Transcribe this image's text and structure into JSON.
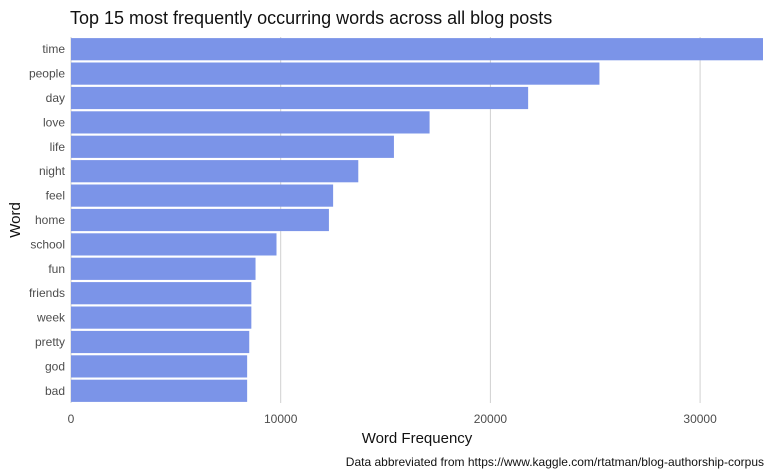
{
  "chart_data": {
    "type": "bar",
    "orientation": "horizontal",
    "title": "Top 15 most frequently occurring words across all blog posts",
    "xlabel": "Word Frequency",
    "ylabel": "Word",
    "caption": "Data abbreviated from https://www.kaggle.com/rtatman/blog-authorship-corpus",
    "categories": [
      "time",
      "people",
      "day",
      "love",
      "life",
      "night",
      "feel",
      "home",
      "school",
      "fun",
      "friends",
      "week",
      "pretty",
      "god",
      "bad"
    ],
    "values": [
      33000,
      25200,
      21800,
      17100,
      15400,
      13700,
      12500,
      12300,
      9800,
      8800,
      8600,
      8600,
      8500,
      8400,
      8400
    ],
    "xlim": [
      0,
      33000
    ],
    "xticks": [
      0,
      10000,
      20000,
      30000
    ],
    "xtick_labels": [
      "0",
      "10000",
      "20000",
      "30000"
    ],
    "grid": true,
    "bar_color": "#7b94e8",
    "grid_color": "#d0d0d0"
  }
}
